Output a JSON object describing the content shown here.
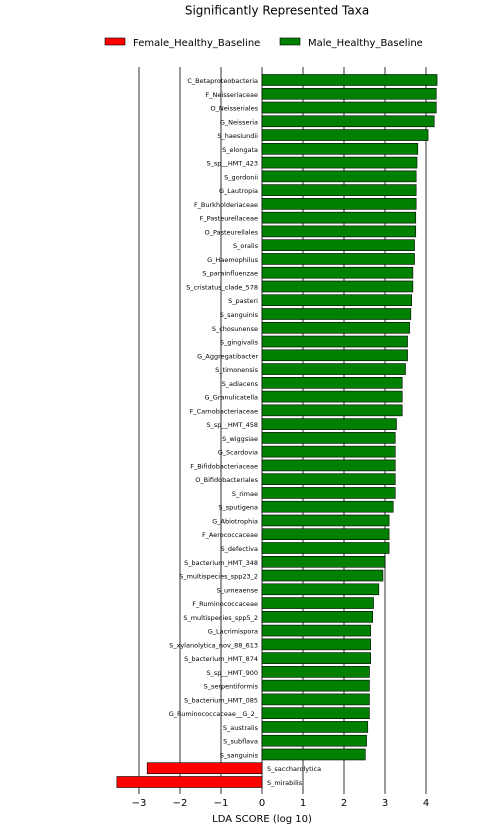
{
  "chart_data": {
    "type": "hbar",
    "title": "Significantly Represented Taxa",
    "x_label": "LDA SCORE (log 10)",
    "categories": [
      "C_Betaproteobacteria",
      "F_Neisseriaceae",
      "O_Neisseriales",
      "G_Neisseria",
      "S_haesiundii",
      "S_elongata",
      "S_sp__HMT_423",
      "S_gordonii",
      "G_Lautropia",
      "F_Burkholderiaceae",
      "F_Pasteurellaceae",
      "O_Pasteurellales",
      "S_oralis",
      "G_Haemophilus",
      "S_parainfluenzae",
      "S_cristatus_clade_578",
      "S_pasteri",
      "S_sanguinis",
      "S_chosunense",
      "S_gingivalis",
      "G_Aggregatibacter",
      "S_timonensis",
      "S_adiacens",
      "G_Granulicatella",
      "F_Carnobacteriaceae",
      "S_sp__HMT_458",
      "S_wiggsiae",
      "G_Scardovia",
      "F_Bifidobacteriaceae",
      "O_Bifidobacteriales",
      "S_rimae",
      "S_sputigena",
      "G_Abiotrophia",
      "F_Aerococcaceae",
      "S_defectiva",
      "S_bacterium_HMT_348",
      "S_multispecies_spp23_2",
      "S_umeaense",
      "F_Ruminococcaceae",
      "S_multispecies_spp5_2",
      "G_Lacrimispora",
      "S_xylanolytica_nov_88_613",
      "S_bacterium_HMT_874",
      "S_sp__HMT_900",
      "S_serpentiformis",
      "S_bacterium_HMT_085",
      "G_Ruminococcaceae__G_2_",
      "S_australis",
      "S_subflava",
      "S_sanguinis",
      "S_saccharolytica",
      "S_mirabilis"
    ],
    "series": [
      {
        "name": "Female_Healthy_Baseline",
        "color": "#ff0000",
        "values": [
          null,
          null,
          null,
          null,
          null,
          null,
          null,
          null,
          null,
          null,
          null,
          null,
          null,
          null,
          null,
          null,
          null,
          null,
          null,
          null,
          null,
          null,
          null,
          null,
          null,
          null,
          null,
          null,
          null,
          null,
          null,
          null,
          null,
          null,
          null,
          null,
          null,
          null,
          null,
          null,
          null,
          null,
          null,
          null,
          null,
          null,
          null,
          null,
          null,
          null,
          -2.8,
          -3.54
        ]
      },
      {
        "name": "Male_Healthy_Baseline",
        "color": "#008000",
        "values": [
          4.27,
          4.25,
          4.25,
          4.2,
          4.05,
          3.8,
          3.78,
          3.76,
          3.76,
          3.76,
          3.75,
          3.75,
          3.72,
          3.72,
          3.68,
          3.68,
          3.65,
          3.63,
          3.6,
          3.55,
          3.55,
          3.5,
          3.42,
          3.42,
          3.42,
          3.28,
          3.25,
          3.25,
          3.25,
          3.25,
          3.25,
          3.2,
          3.1,
          3.1,
          3.1,
          3.0,
          2.95,
          2.85,
          2.72,
          2.7,
          2.65,
          2.65,
          2.65,
          2.62,
          2.62,
          2.62,
          2.62,
          2.58,
          2.55,
          2.52,
          null,
          null
        ]
      }
    ],
    "xlim": [
      -3.55,
      4.3
    ],
    "xticks": [
      {
        "value": -3,
        "label": "−3"
      },
      {
        "value": -2,
        "label": "−2"
      },
      {
        "value": -1,
        "label": "−1"
      },
      0,
      1,
      2,
      3,
      4
    ],
    "grid": true
  }
}
